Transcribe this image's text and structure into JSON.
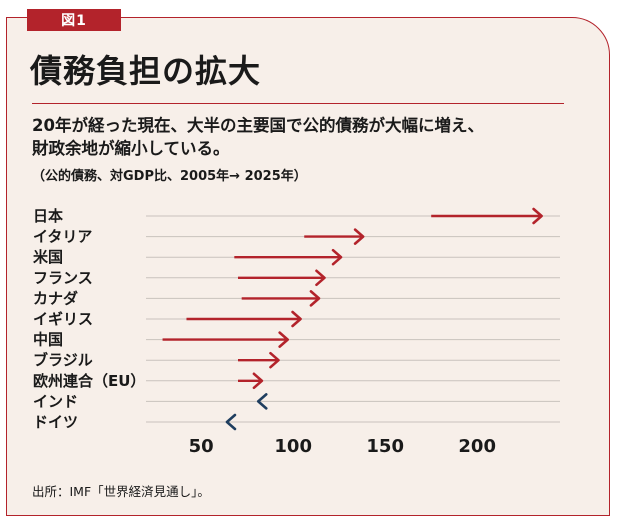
{
  "figure_label": "図1",
  "title": "債務負担の拡大",
  "subtitle_line1": "20年が経った現在、大半の主要国で公的債務が大幅に増え、",
  "subtitle_line2": "財政余地が縮小している。",
  "note": "（公的債務、対GDP比、2005年→ 2025年）",
  "source": "出所：IMF「世界経済見通し」。",
  "colors": {
    "accent": "#b3232b",
    "decrease": "#1f3e5f",
    "background": "#f7efe9",
    "grid": "#c9c2bd"
  },
  "chart_data": {
    "type": "arrow",
    "xlim": [
      20,
      245
    ],
    "xticks": [
      50,
      100,
      150,
      200
    ],
    "grid": true,
    "series": [
      {
        "name": "2005年",
        "role": "start"
      },
      {
        "name": "2025年",
        "role": "end"
      }
    ],
    "rows": [
      {
        "label": "日本",
        "from": 175,
        "to": 235
      },
      {
        "label": "イタリア",
        "from": 106,
        "to": 138
      },
      {
        "label": "米国",
        "from": 68,
        "to": 126
      },
      {
        "label": "フランス",
        "from": 70,
        "to": 117
      },
      {
        "label": "カナダ",
        "from": 72,
        "to": 114
      },
      {
        "label": "イギリス",
        "from": 42,
        "to": 104
      },
      {
        "label": "中国",
        "from": 29,
        "to": 97
      },
      {
        "label": "ブラジル",
        "from": 70,
        "to": 92
      },
      {
        "label": "欧州連合（EU）",
        "from": 70,
        "to": 83
      },
      {
        "label": "インド",
        "from": 84,
        "to": 81
      },
      {
        "label": "ドイツ",
        "from": 68,
        "to": 64
      }
    ]
  }
}
